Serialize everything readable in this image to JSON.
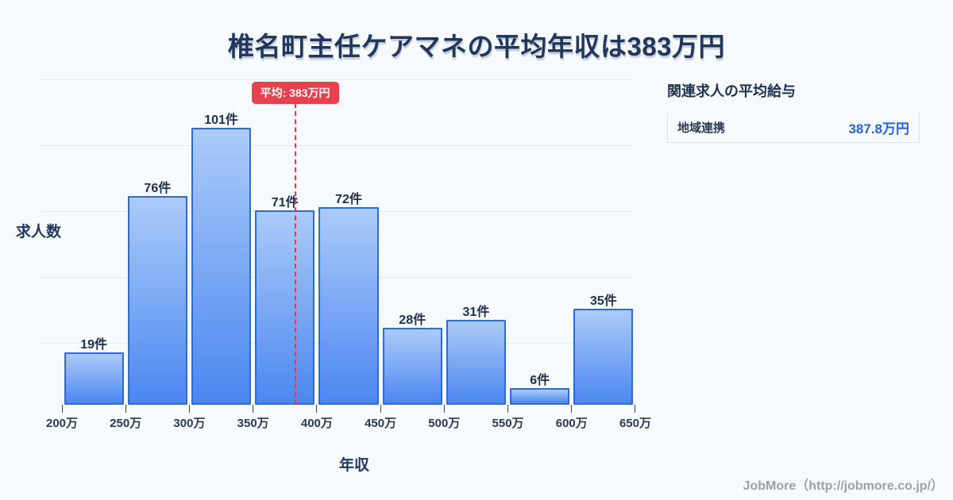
{
  "title": "椎名町主任ケアマネの平均年収は383万円",
  "chart_data": {
    "type": "bar",
    "subtype": "histogram",
    "title": "椎名町主任ケアマネの平均年収は383万円",
    "xlabel": "年収",
    "ylabel": "求人数",
    "grid": true,
    "bin_edge_labels": [
      "200万",
      "250万",
      "300万",
      "350万",
      "400万",
      "450万",
      "500万",
      "550万",
      "600万",
      "650万"
    ],
    "bin_edges_man_yen": [
      200,
      250,
      300,
      350,
      400,
      450,
      500,
      550,
      600,
      650
    ],
    "values": [
      19,
      76,
      101,
      71,
      72,
      28,
      31,
      6,
      35
    ],
    "bar_labels": [
      "19件",
      "76件",
      "101件",
      "71件",
      "72件",
      "28件",
      "31件",
      "6件",
      "35件"
    ],
    "average_value_man_yen": 383,
    "average_label": "平均: 383万円"
  },
  "side_panel": {
    "heading": "関連求人の平均給与",
    "rows": [
      {
        "label": "地域連携",
        "value": "387.8万円"
      }
    ]
  },
  "footer": {
    "credit": "JobMore（http://jobmore.co.jp/）"
  },
  "colors": {
    "background": "#f7fafd",
    "title_navy": "#21365c",
    "bar_fill_top": "#abcbf8",
    "bar_fill_bottom": "#4c87f0",
    "bar_border": "#2c6ae2",
    "average_red": "#e8404c",
    "value_blue": "#2463e6",
    "gridline": "#e3e9f2",
    "footer_gray": "#9aa1ab"
  }
}
